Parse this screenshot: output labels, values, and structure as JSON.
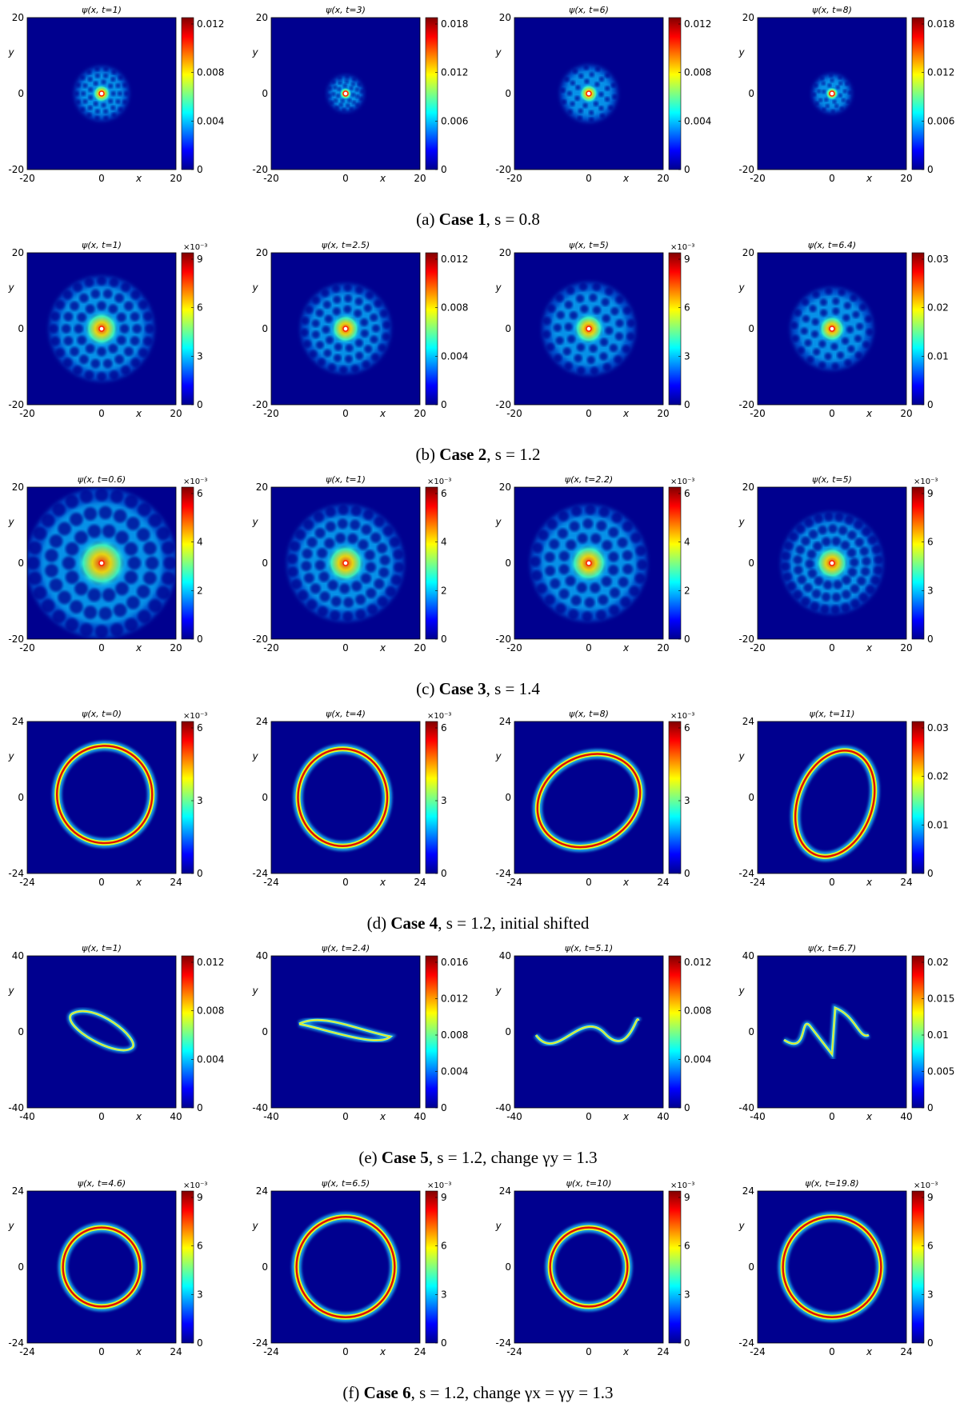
{
  "figure": {
    "rows": [
      {
        "caption": {
          "label": "(a)",
          "case": "Case 1",
          "rest": ", s = 0.8"
        },
        "extent": 20,
        "xticks": [
          "-20",
          "0",
          "20"
        ],
        "yticks": [
          "20",
          "0",
          "-20"
        ],
        "pattern": "lattice",
        "panels": [
          {
            "title": "ψ(x, t=1)",
            "cbar_ticks": [
              "0.012",
              "0.008",
              "0.004",
              "0"
            ],
            "cbar_exp": "",
            "state": {
              "radius": 0.36,
              "spots": 9,
              "twist": 0
            }
          },
          {
            "title": "ψ(x, t=3)",
            "cbar_ticks": [
              "0.018",
              "0.012",
              "0.006",
              "0"
            ],
            "cbar_exp": "",
            "state": {
              "radius": 0.24,
              "spots": 7,
              "twist": 0.2
            }
          },
          {
            "title": "ψ(x, t=6)",
            "cbar_ticks": [
              "0.012",
              "0.008",
              "0.004",
              "0"
            ],
            "cbar_exp": "",
            "state": {
              "radius": 0.38,
              "spots": 7,
              "twist": 1.2
            }
          },
          {
            "title": "ψ(x, t=8)",
            "cbar_ticks": [
              "0.018",
              "0.012",
              "0.006",
              "0"
            ],
            "cbar_exp": "",
            "state": {
              "radius": 0.26,
              "spots": 6,
              "twist": 1.6
            }
          }
        ]
      },
      {
        "caption": {
          "label": "(b)",
          "case": "Case 2",
          "rest": ", s = 1.2"
        },
        "extent": 20,
        "xticks": [
          "-20",
          "0",
          "20"
        ],
        "yticks": [
          "20",
          "0",
          "-20"
        ],
        "pattern": "lattice",
        "panels": [
          {
            "title": "ψ(x, t=1)",
            "cbar_ticks": [
              "9",
              "6",
              "3",
              "0"
            ],
            "cbar_exp": "×10⁻³",
            "state": {
              "radius": 0.7,
              "spots": 12,
              "twist": 0
            }
          },
          {
            "title": "ψ(x, t=2.5)",
            "cbar_ticks": [
              "0.012",
              "0.008",
              "0.004",
              "0"
            ],
            "cbar_exp": "",
            "state": {
              "radius": 0.6,
              "spots": 11,
              "twist": 0.3
            }
          },
          {
            "title": "ψ(x, t=5)",
            "cbar_ticks": [
              "9",
              "6",
              "3",
              "0"
            ],
            "cbar_exp": "×10⁻³",
            "state": {
              "radius": 0.62,
              "spots": 10,
              "twist": 0.9
            }
          },
          {
            "title": "ψ(x, t=6.4)",
            "cbar_ticks": [
              "0.03",
              "0.02",
              "0.01",
              "0"
            ],
            "cbar_exp": "",
            "state": {
              "radius": 0.55,
              "spots": 9,
              "twist": 1.8
            }
          }
        ]
      },
      {
        "caption": {
          "label": "(c)",
          "case": "Case 3",
          "rest": ", s = 1.4"
        },
        "extent": 20,
        "xticks": [
          "-20",
          "0",
          "20"
        ],
        "yticks": [
          "20",
          "0",
          "-20"
        ],
        "pattern": "lattice",
        "panels": [
          {
            "title": "ψ(x, t=0.6)",
            "cbar_ticks": [
              "6",
              "4",
              "2",
              "0"
            ],
            "cbar_exp": "×10⁻³",
            "state": {
              "radius": 1.0,
              "spots": 14,
              "twist": 0
            }
          },
          {
            "title": "ψ(x, t=1)",
            "cbar_ticks": [
              "6",
              "4",
              "2",
              "0"
            ],
            "cbar_exp": "×10⁻³",
            "state": {
              "radius": 0.78,
              "spots": 13,
              "twist": 0.2
            }
          },
          {
            "title": "ψ(x, t=2.2)",
            "cbar_ticks": [
              "6",
              "4",
              "2",
              "0"
            ],
            "cbar_exp": "×10⁻³",
            "state": {
              "radius": 0.78,
              "spots": 12,
              "twist": 1.0
            }
          },
          {
            "title": "ψ(x, t=5)",
            "cbar_ticks": [
              "9",
              "6",
              "3",
              "0"
            ],
            "cbar_exp": "×10⁻³",
            "state": {
              "radius": 0.68,
              "spots": 14,
              "twist": 2.2
            }
          }
        ]
      },
      {
        "caption": {
          "label": "(d)",
          "case": "Case 4",
          "rest": ", s = 1.2, initial shifted"
        },
        "extent": 24,
        "xticks": [
          "-24",
          "0",
          "24"
        ],
        "yticks": [
          "24",
          "0",
          "-24"
        ],
        "pattern": "ring",
        "panels": [
          {
            "title": "ψ(x, t=0)",
            "cbar_ticks": [
              "6",
              "3",
              "0"
            ],
            "cbar_exp": "×10⁻³",
            "state": {
              "rx": 0.64,
              "ry": 0.64,
              "rot": 0,
              "cx": 0.02,
              "cy": 0.02
            }
          },
          {
            "title": "ψ(x, t=4)",
            "cbar_ticks": [
              "6",
              "3",
              "0"
            ],
            "cbar_exp": "×10⁻³",
            "state": {
              "rx": 0.6,
              "ry": 0.64,
              "rot": 0,
              "cx": -0.02,
              "cy": 0.0
            }
          },
          {
            "title": "ψ(x, t=8)",
            "cbar_ticks": [
              "6",
              "3",
              "0"
            ],
            "cbar_exp": "×10⁻³",
            "state": {
              "rx": 0.72,
              "ry": 0.58,
              "rot": 30,
              "cx": 0.0,
              "cy": -0.02
            }
          },
          {
            "title": "ψ(x, t=11)",
            "cbar_ticks": [
              "0.03",
              "0.02",
              "0.01",
              "0"
            ],
            "cbar_exp": "",
            "state": {
              "rx": 0.5,
              "ry": 0.72,
              "rot": -20,
              "cx": 0.02,
              "cy": -0.04
            }
          }
        ]
      },
      {
        "caption": {
          "label": "(e)",
          "case": "Case 5",
          "rest": ", s = 1.2, change γy = 1.3"
        },
        "extent": 40,
        "xticks": [
          "-40",
          "0",
          "40"
        ],
        "yticks": [
          "40",
          "0",
          "-40"
        ],
        "pattern": "band",
        "panels": [
          {
            "title": "ψ(x, t=1)",
            "cbar_ticks": [
              "0.012",
              "0.008",
              "0.004",
              "0"
            ],
            "cbar_exp": "",
            "state": {
              "shape": "ellipse"
            }
          },
          {
            "title": "ψ(x, t=2.4)",
            "cbar_ticks": [
              "0.016",
              "0.012",
              "0.008",
              "0.004",
              "0"
            ],
            "cbar_exp": "",
            "state": {
              "shape": "flat-s"
            }
          },
          {
            "title": "ψ(x, t=5.1)",
            "cbar_ticks": [
              "0.012",
              "0.008",
              "0.004",
              "0"
            ],
            "cbar_exp": "",
            "state": {
              "shape": "wave"
            }
          },
          {
            "title": "ψ(x, t=6.7)",
            "cbar_ticks": [
              "0.02",
              "0.015",
              "0.01",
              "0.005",
              "0"
            ],
            "cbar_exp": "",
            "state": {
              "shape": "zigzag"
            }
          }
        ]
      },
      {
        "caption": {
          "label": "(f)",
          "case": "Case 6",
          "rest": ", s = 1.2, change γx = γy = 1.3"
        },
        "extent": 24,
        "xticks": [
          "-24",
          "0",
          "24"
        ],
        "yticks": [
          "24",
          "0",
          "-24"
        ],
        "pattern": "ring",
        "panels": [
          {
            "title": "ψ(x, t=4.6)",
            "cbar_ticks": [
              "9",
              "6",
              "3",
              "0"
            ],
            "cbar_exp": "×10⁻³",
            "state": {
              "rx": 0.52,
              "ry": 0.52,
              "rot": 0,
              "cx": 0,
              "cy": 0
            }
          },
          {
            "title": "ψ(x, t=6.5)",
            "cbar_ticks": [
              "9",
              "6",
              "3",
              "0"
            ],
            "cbar_exp": "×10⁻³",
            "state": {
              "rx": 0.66,
              "ry": 0.66,
              "rot": 0,
              "cx": 0,
              "cy": 0
            }
          },
          {
            "title": "ψ(x, t=10)",
            "cbar_ticks": [
              "9",
              "6",
              "3",
              "0"
            ],
            "cbar_exp": "×10⁻³",
            "state": {
              "rx": 0.52,
              "ry": 0.52,
              "rot": 0,
              "cx": 0,
              "cy": 0
            }
          },
          {
            "title": "ψ(x, t=19.8)",
            "cbar_ticks": [
              "9",
              "6",
              "3",
              "0"
            ],
            "cbar_exp": "×10⁻³",
            "state": {
              "rx": 0.66,
              "ry": 0.66,
              "rot": 0,
              "cx": 0,
              "cy": 0
            }
          }
        ]
      }
    ],
    "axis_labels": {
      "x": "x",
      "y": "y"
    }
  }
}
